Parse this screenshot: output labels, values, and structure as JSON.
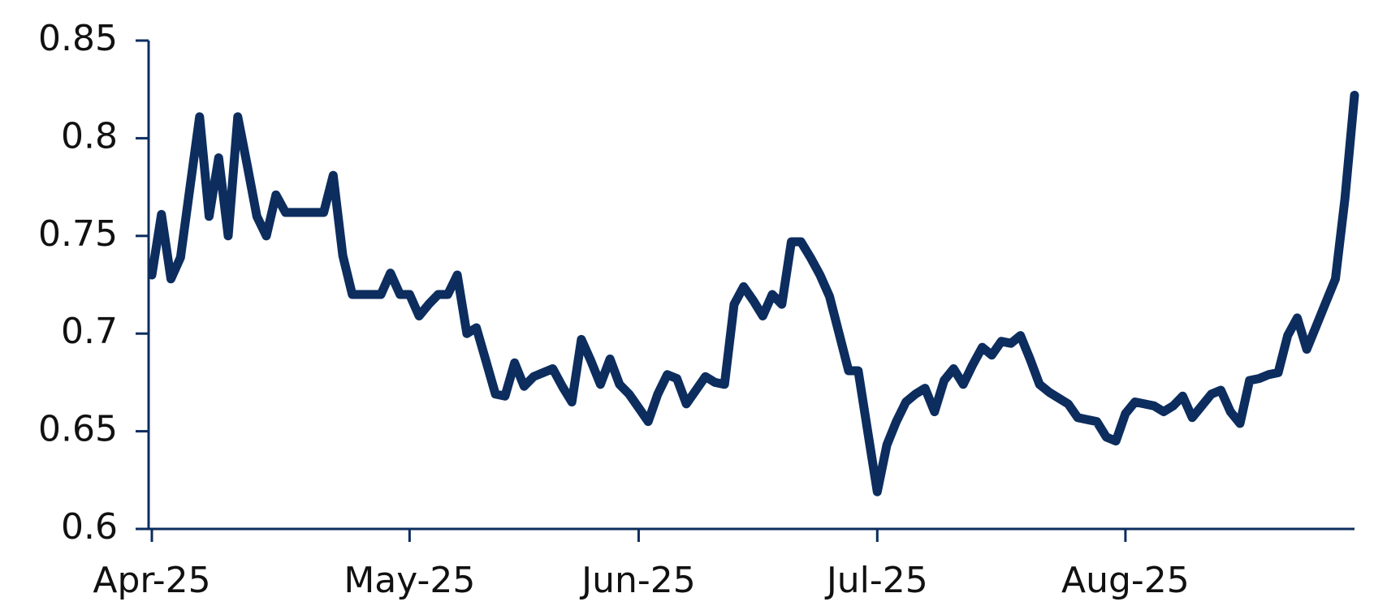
{
  "chart_data": {
    "type": "line",
    "categories": [
      "Apr-25",
      null,
      null,
      null,
      null,
      null,
      null,
      null,
      null,
      null,
      null,
      null,
      null,
      null,
      null,
      null,
      null,
      null,
      null,
      null,
      null,
      null,
      null,
      null,
      null,
      null,
      null,
      "May-25",
      null,
      null,
      null,
      null,
      null,
      null,
      null,
      null,
      null,
      null,
      null,
      null,
      null,
      null,
      null,
      null,
      null,
      null,
      null,
      null,
      null,
      null,
      null,
      "Jun-25",
      null,
      null,
      null,
      null,
      null,
      null,
      null,
      null,
      null,
      null,
      null,
      null,
      null,
      null,
      null,
      null,
      null,
      null,
      null,
      null,
      null,
      null,
      null,
      null,
      "Jul-25",
      null,
      null,
      null,
      null,
      null,
      null,
      null,
      null,
      null,
      null,
      null,
      null,
      null,
      null,
      null,
      null,
      null,
      null,
      null,
      null,
      null,
      null,
      null,
      null,
      null,
      "Aug-25",
      null,
      null,
      null,
      null,
      null,
      null,
      null,
      null,
      null,
      null,
      null,
      null,
      null,
      null,
      null,
      null,
      null,
      null,
      null,
      null,
      null,
      null,
      null,
      null
    ],
    "series": [
      {
        "color": "#0c2d5e",
        "values": [
          0.73,
          0.761,
          0.728,
          0.739,
          0.775,
          0.811,
          0.76,
          0.79,
          0.75,
          0.811,
          0.786,
          0.76,
          0.75,
          0.771,
          0.762,
          0.762,
          0.762,
          0.762,
          0.762,
          0.781,
          0.74,
          0.72,
          0.72,
          0.72,
          0.72,
          0.731,
          0.72,
          0.72,
          0.709,
          0.715,
          0.72,
          0.72,
          0.73,
          0.7,
          0.703,
          0.686,
          0.669,
          0.668,
          0.685,
          0.673,
          0.678,
          0.68,
          0.682,
          0.673,
          0.665,
          0.697,
          0.686,
          0.674,
          0.687,
          0.674,
          0.669,
          0.662,
          0.655,
          0.669,
          0.679,
          0.677,
          0.664,
          0.671,
          0.678,
          0.675,
          0.674,
          0.715,
          0.724,
          0.717,
          0.709,
          0.72,
          0.715,
          0.747,
          0.747,
          0.739,
          0.73,
          0.719,
          0.7,
          0.681,
          0.681,
          0.65,
          0.619,
          0.643,
          0.655,
          0.665,
          0.669,
          0.672,
          0.66,
          0.676,
          0.682,
          0.674,
          0.684,
          0.693,
          0.689,
          0.696,
          0.695,
          0.699,
          0.687,
          0.674,
          0.67,
          0.667,
          0.664,
          0.657,
          0.656,
          0.655,
          0.647,
          0.645,
          0.659,
          0.665,
          0.664,
          0.663,
          0.66,
          0.663,
          0.668,
          0.657,
          0.663,
          0.669,
          0.671,
          0.66,
          0.654,
          0.676,
          0.677,
          0.679,
          0.68,
          0.699,
          0.708,
          0.692,
          0.704,
          0.716,
          0.728,
          0.769,
          0.822
        ]
      }
    ],
    "ylim": [
      0.6,
      0.85
    ],
    "yticks": [
      0.6,
      0.65,
      0.7,
      0.75,
      0.8,
      0.85
    ],
    "grid": false
  }
}
